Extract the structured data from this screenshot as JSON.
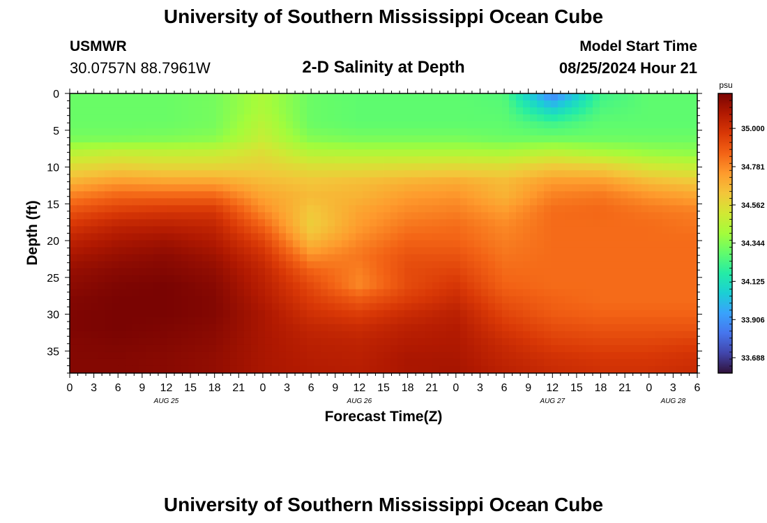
{
  "header": {
    "title": "University of Southern Mississippi Ocean Cube",
    "station": "USMWR",
    "coords": "30.0757N  88.7961W",
    "subtitle": "2-D Salinity at Depth",
    "model_start_label": "Model Start Time",
    "model_start_value": "08/25/2024 Hour 21"
  },
  "footer": {
    "title": "University of Southern Mississippi Ocean Cube"
  },
  "chart_data": {
    "type": "heatmap",
    "xlabel": "Forecast Time(Z)",
    "ylabel": "Depth (ft)",
    "colorbar_label": "psu",
    "x_hours": [
      0,
      3,
      6,
      9,
      12,
      15,
      18,
      21,
      24,
      27,
      30,
      33,
      36,
      39,
      42,
      45,
      48,
      51,
      54,
      57,
      60,
      63,
      66,
      69,
      72,
      75,
      78
    ],
    "x_tick_labels": [
      "0",
      "3",
      "6",
      "9",
      "12",
      "15",
      "18",
      "21",
      "0",
      "3",
      "6",
      "9",
      "12",
      "15",
      "18",
      "21",
      "0",
      "3",
      "6",
      "9",
      "12",
      "15",
      "18",
      "21",
      "0",
      "3",
      "6"
    ],
    "date_labels": [
      {
        "label": "AUG 25",
        "hour": 12
      },
      {
        "label": "AUG 26",
        "hour": 36
      },
      {
        "label": "AUG 27",
        "hour": 60
      },
      {
        "label": "AUG 28",
        "hour": 75
      }
    ],
    "y_ticks": [
      0,
      5,
      10,
      15,
      20,
      25,
      30,
      35
    ],
    "y_range": [
      0,
      38
    ],
    "x_range": [
      0,
      78
    ],
    "colorbar_ticks": [
      35.0,
      34.781,
      34.562,
      34.344,
      34.125,
      33.906,
      33.688
    ],
    "colorbar_tick_labels": [
      "35.000",
      "34.781",
      "34.562",
      "34.344",
      "34.125",
      "33.906",
      "33.688"
    ],
    "colorbar_range": [
      33.6,
      35.2
    ],
    "colormap": [
      "#30123b",
      "#4145ab",
      "#4675ed",
      "#39a2fc",
      "#1bcfd4",
      "#24eca6",
      "#61fc6c",
      "#a4fc3b",
      "#d1e834",
      "#f3c63a",
      "#fe9b2d",
      "#f36315",
      "#d93806",
      "#b11901",
      "#7a0402"
    ],
    "depths": [
      0,
      2,
      4,
      6,
      8,
      10,
      12,
      14,
      16,
      18,
      20,
      22,
      24,
      26,
      28,
      30,
      32,
      34,
      36,
      38
    ],
    "times": [
      0,
      6,
      12,
      18,
      24,
      30,
      36,
      42,
      48,
      54,
      60,
      66,
      72,
      78
    ],
    "values": [
      [
        34.3,
        34.3,
        34.3,
        34.32,
        34.42,
        34.3,
        34.28,
        34.28,
        34.28,
        34.26,
        33.85,
        34.22,
        34.28,
        34.28
      ],
      [
        34.3,
        34.3,
        34.3,
        34.32,
        34.42,
        34.3,
        34.28,
        34.28,
        34.28,
        34.27,
        34.05,
        34.25,
        34.28,
        34.28
      ],
      [
        34.3,
        34.3,
        34.3,
        34.32,
        34.45,
        34.3,
        34.28,
        34.28,
        34.28,
        34.28,
        34.22,
        34.28,
        34.28,
        34.28
      ],
      [
        34.32,
        34.32,
        34.33,
        34.35,
        34.48,
        34.34,
        34.32,
        34.32,
        34.32,
        34.3,
        34.3,
        34.3,
        34.3,
        34.3
      ],
      [
        34.45,
        34.48,
        34.47,
        34.48,
        34.55,
        34.44,
        34.43,
        34.43,
        34.43,
        34.42,
        34.46,
        34.42,
        34.38,
        34.36
      ],
      [
        34.56,
        34.6,
        34.58,
        34.58,
        34.6,
        34.55,
        34.55,
        34.56,
        34.57,
        34.56,
        34.62,
        34.6,
        34.52,
        34.48
      ],
      [
        34.68,
        34.74,
        34.72,
        34.72,
        34.66,
        34.63,
        34.65,
        34.68,
        34.7,
        34.66,
        34.74,
        34.74,
        34.66,
        34.62
      ],
      [
        34.8,
        34.86,
        34.86,
        34.86,
        34.72,
        34.66,
        34.68,
        34.74,
        34.76,
        34.68,
        34.8,
        34.82,
        34.76,
        34.72
      ],
      [
        34.9,
        34.96,
        34.98,
        34.98,
        34.78,
        34.62,
        34.72,
        34.78,
        34.8,
        34.74,
        34.84,
        34.85,
        34.82,
        34.8
      ],
      [
        34.98,
        35.05,
        35.06,
        35.04,
        34.86,
        34.6,
        34.74,
        34.82,
        34.84,
        34.78,
        34.84,
        34.84,
        34.84,
        34.82
      ],
      [
        35.05,
        35.1,
        35.12,
        35.08,
        34.94,
        34.66,
        34.78,
        34.86,
        34.86,
        34.8,
        34.84,
        34.84,
        34.84,
        34.84
      ],
      [
        35.1,
        35.14,
        35.16,
        35.12,
        35.0,
        34.76,
        34.82,
        34.9,
        34.9,
        34.82,
        34.84,
        34.84,
        34.84,
        34.84
      ],
      [
        35.14,
        35.17,
        35.18,
        35.15,
        35.04,
        34.86,
        34.8,
        34.92,
        34.94,
        34.84,
        34.84,
        34.84,
        34.84,
        34.84
      ],
      [
        35.16,
        35.19,
        35.2,
        35.17,
        35.06,
        34.92,
        34.78,
        34.92,
        34.98,
        34.86,
        34.84,
        34.84,
        34.84,
        34.84
      ],
      [
        35.18,
        35.2,
        35.2,
        35.18,
        35.08,
        34.96,
        34.88,
        34.96,
        35.02,
        34.9,
        34.86,
        34.84,
        34.84,
        34.84
      ],
      [
        35.19,
        35.2,
        35.2,
        35.18,
        35.1,
        35.0,
        34.96,
        35.02,
        35.06,
        34.94,
        34.88,
        34.86,
        34.86,
        34.86
      ],
      [
        35.19,
        35.2,
        35.19,
        35.17,
        35.1,
        35.04,
        35.02,
        35.06,
        35.08,
        34.98,
        34.92,
        34.9,
        34.9,
        34.9
      ],
      [
        35.18,
        35.19,
        35.18,
        35.16,
        35.1,
        35.06,
        35.05,
        35.08,
        35.09,
        35.02,
        34.96,
        34.94,
        34.94,
        34.96
      ],
      [
        35.18,
        35.18,
        35.17,
        35.15,
        35.1,
        35.07,
        35.06,
        35.1,
        35.1,
        35.04,
        35.0,
        34.98,
        34.98,
        35.0
      ],
      [
        35.18,
        35.18,
        35.17,
        35.15,
        35.1,
        35.08,
        35.07,
        35.1,
        35.11,
        35.06,
        35.02,
        35.0,
        35.0,
        35.02
      ]
    ]
  }
}
